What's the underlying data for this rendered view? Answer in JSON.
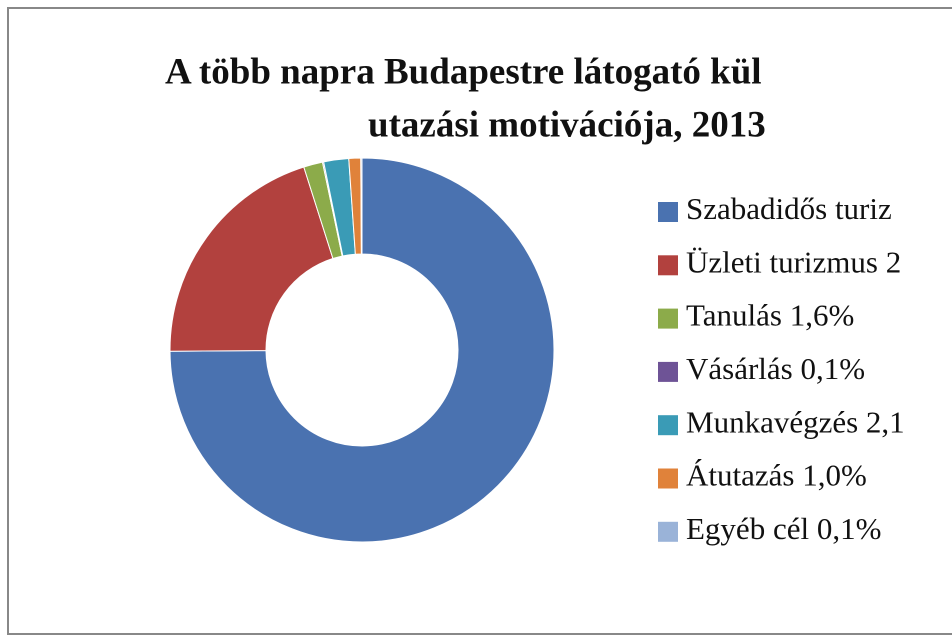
{
  "chart_data": {
    "type": "donut",
    "title": [
      "A több napra Budapestre látogató kül",
      "utazási motivációja, 2013"
    ],
    "categories": [
      "Szabadidős turiz",
      "Üzleti turizmus 2",
      "Tanulás 1,6%",
      "Vásárlás 0,1%",
      "Munkavégzés 2,1",
      "Átutazás 1,0%",
      "Egyéb cél 0,1%"
    ],
    "values": [
      74.9,
      20.2,
      1.6,
      0.1,
      2.1,
      1.0,
      0.1
    ],
    "colors": [
      "#4a72b0",
      "#b2413e",
      "#8cab4a",
      "#6e5396",
      "#3a9bb6",
      "#e0823a",
      "#9ab3d8"
    ],
    "legend": "right"
  }
}
